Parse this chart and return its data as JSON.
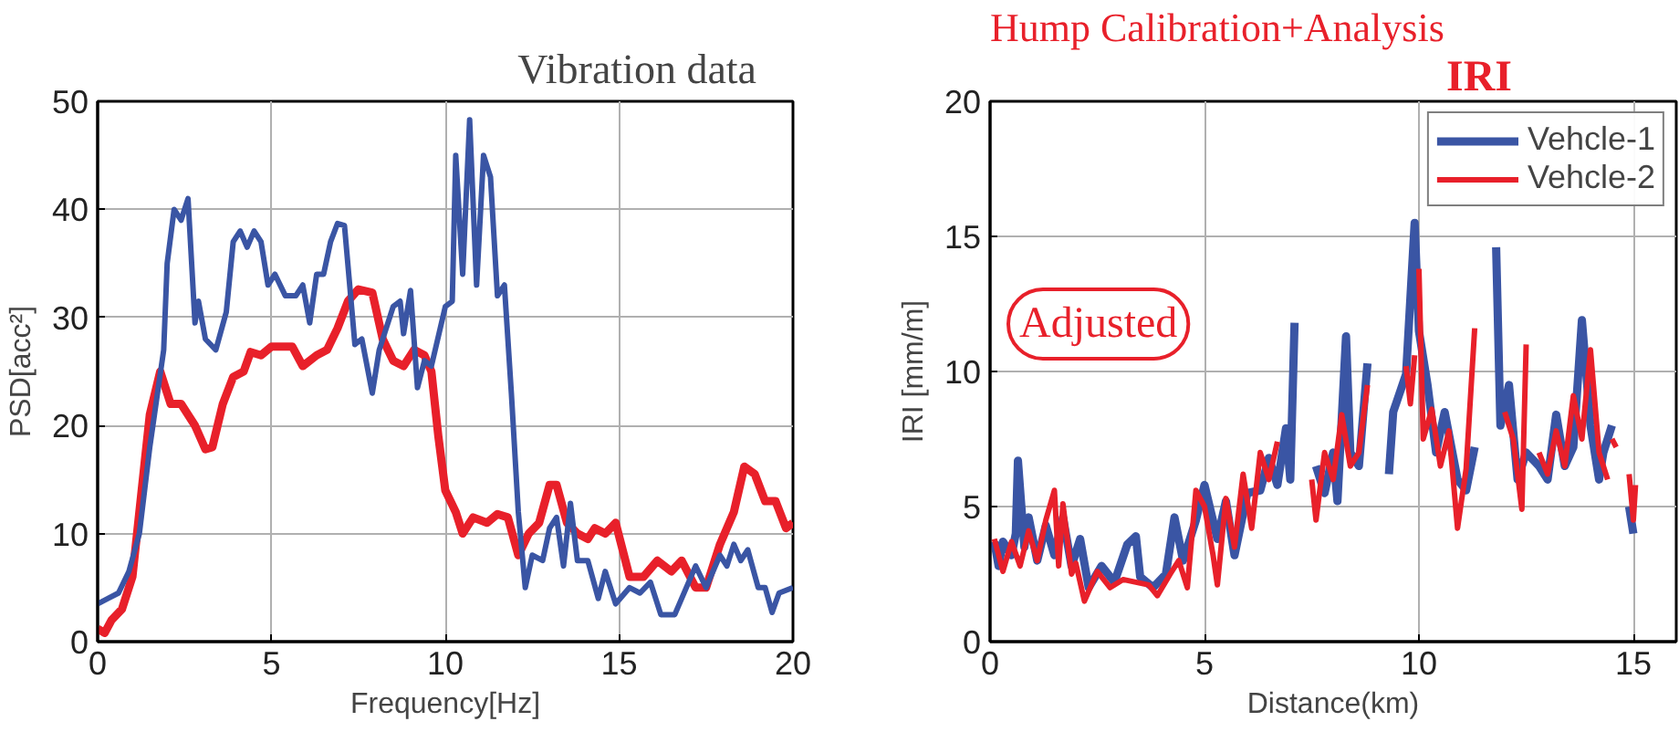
{
  "chart_data": [
    {
      "type": "line",
      "title": "Vibration data",
      "xlabel": "Frequency[Hz]",
      "ylabel": "PSD[acc²]",
      "xlim": [
        0,
        20
      ],
      "ylim": [
        0,
        50
      ],
      "xticks": [
        0,
        5,
        10,
        15,
        20
      ],
      "yticks": [
        0,
        10,
        20,
        30,
        40,
        50
      ],
      "grid": true,
      "legend": false,
      "line_style": "solid",
      "series": [
        {
          "color": "#e8202a",
          "x": [
            0,
            0.2,
            0.4,
            0.7,
            1,
            1.2,
            1.5,
            1.8,
            2.1,
            2.4,
            2.8,
            3.1,
            3.3,
            3.6,
            3.9,
            4.2,
            4.4,
            4.7,
            5,
            5.3,
            5.6,
            5.9,
            6.3,
            6.6,
            6.9,
            7.2,
            7.5,
            7.9,
            8.2,
            8.5,
            8.8,
            9.1,
            9.4,
            9.6,
            9.8,
            10,
            10.3,
            10.5,
            10.8,
            11.2,
            11.5,
            11.8,
            12.1,
            12.4,
            12.7,
            13,
            13.2,
            13.5,
            13.8,
            14.1,
            14.3,
            14.6,
            14.9,
            15.3,
            15.7,
            16.1,
            16.5,
            16.8,
            17.2,
            17.5,
            17.9,
            18.3,
            18.6,
            18.9,
            19.2,
            19.5,
            19.8,
            20
          ],
          "values": [
            1.2,
            0.8,
            2,
            3,
            6,
            12,
            21,
            25,
            22,
            22,
            20,
            17.8,
            18,
            22,
            24.5,
            25,
            26.8,
            26.5,
            27.3,
            27.3,
            27.3,
            25.5,
            26.5,
            27,
            29,
            31.5,
            32.6,
            32.3,
            28,
            26,
            25.5,
            27,
            26.5,
            25,
            19,
            14,
            12,
            10,
            11.5,
            11,
            11.8,
            11.5,
            8,
            10,
            11,
            14.5,
            14.5,
            11,
            10,
            9.5,
            10.5,
            10,
            11,
            6,
            6,
            7.5,
            6.5,
            7.5,
            5,
            5,
            9,
            12,
            16.2,
            15.5,
            13,
            13,
            10.5,
            11
          ]
        },
        {
          "color": "#3a55a4",
          "x": [
            0,
            0.3,
            0.6,
            0.9,
            1.2,
            1.5,
            1.9,
            2.0,
            2.2,
            2.4,
            2.6,
            2.8,
            2.9,
            3.1,
            3.4,
            3.7,
            3.9,
            4.1,
            4.3,
            4.5,
            4.7,
            4.9,
            5.1,
            5.4,
            5.7,
            5.9,
            6.1,
            6.3,
            6.5,
            6.7,
            6.9,
            7.1,
            7.4,
            7.6,
            7.9,
            8.1,
            8.5,
            8.7,
            8.8,
            9.0,
            9.2,
            9.4,
            9.6,
            10,
            10.2,
            10.3,
            10.5,
            10.7,
            10.9,
            11.1,
            11.3,
            11.5,
            11.7,
            11.9,
            12.1,
            12.3,
            12.5,
            12.8,
            13,
            13.2,
            13.4,
            13.6,
            13.8,
            14.1,
            14.4,
            14.6,
            14.9,
            15.3,
            15.6,
            15.9,
            16.2,
            16.6,
            16.8,
            17.2,
            17.5,
            17.9,
            18.1,
            18.3,
            18.5,
            18.7,
            19.0,
            19.2,
            19.4,
            19.6,
            20
          ],
          "values": [
            3.5,
            4,
            4.5,
            6.5,
            10,
            18,
            27,
            35,
            40,
            39,
            41,
            29.5,
            31.5,
            28,
            27,
            30.5,
            37,
            38,
            36.5,
            38,
            37,
            33,
            34,
            32,
            32,
            33,
            29.5,
            34,
            34,
            37,
            38.7,
            38.5,
            27.5,
            28,
            23,
            27,
            31,
            31.5,
            28.5,
            32.5,
            23.5,
            26,
            25.5,
            31,
            31.5,
            45,
            34,
            48.3,
            33,
            45,
            43,
            32,
            33,
            23,
            12,
            5,
            8,
            7.5,
            10.5,
            11.5,
            7,
            12.8,
            7.5,
            7.5,
            4,
            6.5,
            3.5,
            5,
            4.5,
            5.5,
            2.5,
            2.5,
            4,
            7,
            5,
            8,
            7,
            9,
            7.5,
            8.5,
            5,
            5,
            2.7,
            4.5,
            5
          ]
        }
      ]
    },
    {
      "type": "line",
      "title": "IRI",
      "xlabel": "Distance(km)",
      "ylabel": "IRI [mm/m]",
      "xlim": [
        0,
        16
      ],
      "ylim": [
        0,
        20
      ],
      "xticks": [
        0,
        5,
        10,
        15
      ],
      "yticks": [
        0,
        5,
        10,
        15,
        20
      ],
      "grid": true,
      "legend": "top right",
      "line_style": "solid",
      "annotations": [
        "Hump Calibration+Analysis",
        "Adjusted"
      ],
      "series": [
        {
          "name": "Vehcle-1",
          "color": "#3a55a4",
          "x": [
            0.1,
            0.2,
            0.3,
            0.5,
            0.6,
            0.65,
            0.8,
            0.9,
            1.1,
            1.3,
            1.5,
            1.7,
            1.9,
            2.1,
            2.3,
            2.6,
            2.9,
            3.2,
            3.4,
            3.5,
            3.8,
            4.1,
            4.3,
            4.5,
            4.8,
            5.0,
            5.3,
            5.5,
            5.7,
            6.0,
            6.3,
            6.5,
            6.7,
            6.9,
            7.0,
            7.1,
            7.3,
            7.6,
            7.8,
            8.0,
            8.1,
            8.3,
            8.4,
            8.6,
            8.8,
            9.0,
            9.3,
            9.4,
            9.7,
            9.9,
            10.0,
            10.2,
            10.4,
            10.6,
            10.9,
            11.1,
            11.3,
            11.5,
            11.8,
            11.9,
            12.1,
            12.3,
            12.5,
            12.8,
            13.0,
            13.2,
            13.4,
            13.6,
            13.8,
            14.0,
            14.2,
            14.3,
            14.5,
            14.7,
            14.9,
            15.0
          ],
          "values": [
            3.7,
            2.8,
            3.7,
            3.2,
            4,
            6.7,
            3.5,
            4.6,
            3,
            4.3,
            3.2,
            4.6,
            2.8,
            3.8,
            2,
            2.8,
            2.2,
            3.6,
            3.9,
            2.4,
            2,
            2.5,
            4.6,
            3,
            4.5,
            5.8,
            3.8,
            5.2,
            3.2,
            5.5,
            5.6,
            6.8,
            5.8,
            7.9,
            6,
            11.8,
            null,
            6.5,
            5.5,
            7,
            5.2,
            11.3,
            7,
            6.5,
            10.3,
            null,
            6.2,
            8.5,
            9.9,
            15.5,
            11.5,
            9.5,
            7,
            8.5,
            6,
            5.6,
            7.2,
            null,
            14.6,
            8,
            9.5,
            6,
            7,
            6.5,
            6,
            8.4,
            6.5,
            7.2,
            11.9,
            8,
            6,
            7,
            8,
            null,
            5,
            4
          ]
        },
        {
          "name": "Vehcle-2",
          "color": "#e8202a",
          "x": [
            0.1,
            0.3,
            0.5,
            0.7,
            0.9,
            1.1,
            1.3,
            1.5,
            1.6,
            1.7,
            1.9,
            2.0,
            2.2,
            2.5,
            2.8,
            3.1,
            3.4,
            3.7,
            3.9,
            4.2,
            4.4,
            4.6,
            4.8,
            5.0,
            5.2,
            5.3,
            5.5,
            5.7,
            5.9,
            6.1,
            6.3,
            6.5,
            6.7,
            7.1,
            7.5,
            7.6,
            7.8,
            8.0,
            8.2,
            8.4,
            8.6,
            8.8,
            9.2,
            9.7,
            9.8,
            9.9,
            9.95,
            10.0,
            10.1,
            10.3,
            10.5,
            10.7,
            10.9,
            11.1,
            11.3,
            11.6,
            12.0,
            12.2,
            12.4,
            12.5,
            12.6,
            12.8,
            13.0,
            13.2,
            13.4,
            13.6,
            13.8,
            14.0,
            14.2,
            14.4,
            14.45,
            14.5,
            14.6,
            14.8,
            14.9,
            15.0,
            15.05
          ],
          "values": [
            3.8,
            2.6,
            3.7,
            2.8,
            4.1,
            3,
            4.5,
            5.6,
            2.8,
            5.1,
            2.5,
            2.9,
            1.5,
            2.6,
            2,
            2.3,
            2.2,
            2.1,
            1.7,
            2.5,
            3,
            2,
            5.6,
            5,
            3.2,
            2.1,
            5.3,
            3.5,
            6.2,
            4.2,
            7,
            6,
            7.4,
            null,
            6,
            4.5,
            7,
            6,
            8.4,
            6.5,
            7,
            9.5,
            null,
            10.2,
            8.8,
            10.6,
            null,
            13.8,
            7.5,
            8.6,
            6.5,
            7.8,
            4.2,
            6.4,
            11.6,
            null,
            8.5,
            7.5,
            4.9,
            11,
            null,
            7,
            6.2,
            7.8,
            6.5,
            9.1,
            7.5,
            10.8,
            7,
            6,
            null,
            7.5,
            7.2,
            null,
            6.2,
            4.5,
            5.8
          ]
        }
      ]
    }
  ]
}
